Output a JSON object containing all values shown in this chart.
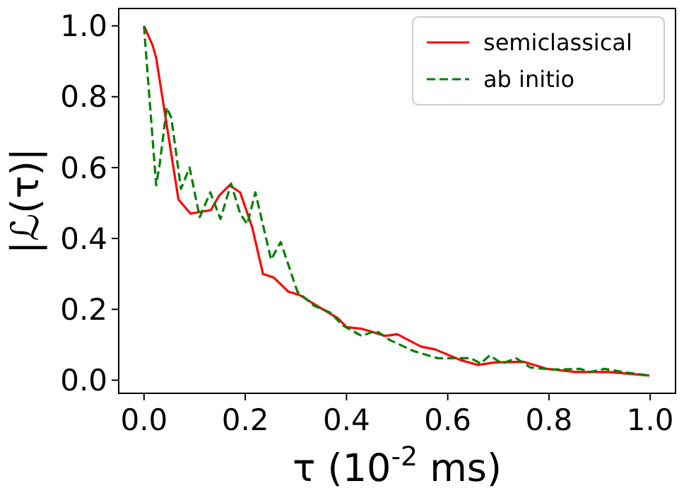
{
  "chart_data": {
    "type": "line",
    "xlabel": "τ (10$^{-2}$ ms)",
    "ylabel": "|ℒ(τ)|",
    "xlim": [
      -0.05,
      1.05
    ],
    "ylim": [
      -0.037,
      1.049
    ],
    "xticks": [
      {
        "value": 0,
        "label": "0.0"
      },
      0.2,
      0.4,
      0.6,
      0.8,
      {
        "value": 1,
        "label": "1.0"
      }
    ],
    "yticks": [
      {
        "value": 0,
        "label": "0.0"
      },
      0.2,
      0.4,
      0.6,
      0.8,
      {
        "value": 1,
        "label": "1.0"
      }
    ],
    "legend": "top right",
    "grid": false,
    "series": [
      {
        "name": "semiclassical",
        "color": "#ff0000",
        "line_style": "solid",
        "x": [
          0,
          0.017,
          0.024,
          0.068,
          0.092,
          0.132,
          0.148,
          0.169,
          0.19,
          0.214,
          0.235,
          0.256,
          0.285,
          0.308,
          0.336,
          0.383,
          0.4,
          0.43,
          0.477,
          0.5,
          0.547,
          0.575,
          0.627,
          0.66,
          0.693,
          0.75,
          0.796,
          0.853,
          0.918,
          0.998
        ],
        "values": [
          1.0,
          0.945,
          0.91,
          0.51,
          0.47,
          0.48,
          0.52,
          0.55,
          0.53,
          0.43,
          0.3,
          0.29,
          0.25,
          0.24,
          0.215,
          0.175,
          0.15,
          0.145,
          0.125,
          0.13,
          0.095,
          0.087,
          0.056,
          0.043,
          0.05,
          0.052,
          0.032,
          0.023,
          0.023,
          0.013
        ]
      },
      {
        "name": "ab initio",
        "color": "#008000",
        "line_style": "dashed",
        "x": [
          0,
          0.003,
          0.024,
          0.031,
          0.045,
          0.054,
          0.073,
          0.09,
          0.11,
          0.131,
          0.151,
          0.172,
          0.19,
          0.204,
          0.22,
          0.251,
          0.27,
          0.303,
          0.336,
          0.369,
          0.392,
          0.43,
          0.458,
          0.486,
          0.533,
          0.58,
          0.646,
          0.665,
          0.683,
          0.707,
          0.735,
          0.763,
          0.806,
          0.862,
          0.88,
          0.91,
          0.946,
          0.998
        ],
        "values": [
          1.0,
          0.94,
          0.55,
          0.61,
          0.77,
          0.74,
          0.54,
          0.6,
          0.46,
          0.53,
          0.455,
          0.555,
          0.47,
          0.44,
          0.53,
          0.34,
          0.39,
          0.25,
          0.21,
          0.19,
          0.155,
          0.125,
          0.14,
          0.113,
          0.082,
          0.062,
          0.062,
          0.047,
          0.07,
          0.047,
          0.062,
          0.036,
          0.03,
          0.032,
          0.023,
          0.032,
          0.023,
          0.013
        ]
      }
    ]
  }
}
